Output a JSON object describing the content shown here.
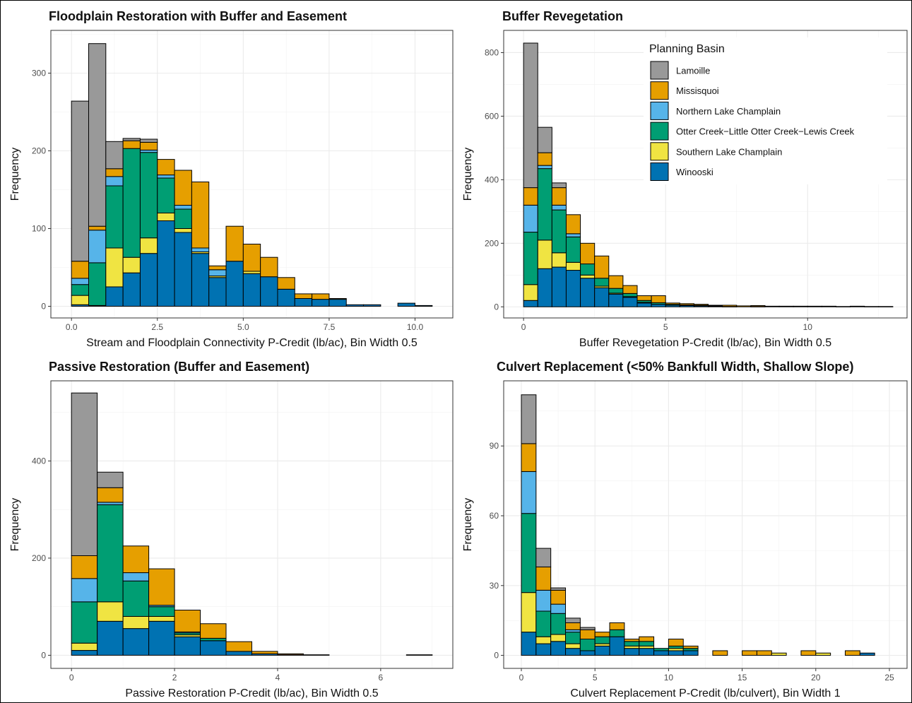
{
  "legend": {
    "title": "Planning Basin",
    "placement": "top-right of Buffer Revegetation panel",
    "items": [
      {
        "name": "Lamoille",
        "color": "#999999"
      },
      {
        "name": "Missisquoi",
        "color": "#E69F00"
      },
      {
        "name": "Northern Lake Champlain",
        "color": "#56B4E9"
      },
      {
        "name": "Otter Creek−Little Otter Creek−Lewis Creek",
        "color": "#009E73"
      },
      {
        "name": "Southern Lake Champlain",
        "color": "#F0E442"
      },
      {
        "name": "Winooski",
        "color": "#0072B2"
      }
    ]
  },
  "chart_data": [
    {
      "type": "bar",
      "stacked": true,
      "title": "Floodplain Restoration with Buffer and Easement",
      "xlabel": "Stream and Floodplain Connectivity P-Credit (lb/ac), Bin Width 0.5",
      "ylabel": "Frequency",
      "bin_width": 0.5,
      "x_start": 0,
      "xlim": [
        -0.6,
        11.1
      ],
      "ylim": [
        -15,
        355
      ],
      "x_ticks": [
        0,
        2.5,
        5,
        7.5,
        10
      ],
      "x_tick_labels": [
        "0.0",
        "2.5",
        "5.0",
        "7.5",
        "10.0"
      ],
      "y_ticks": [
        0,
        100,
        200,
        300
      ],
      "grid": true,
      "series": [
        {
          "name": "Winooski",
          "values": [
            2,
            1,
            25,
            43,
            68,
            110,
            95,
            68,
            37,
            58,
            42,
            38,
            22,
            10,
            9,
            9,
            2,
            2,
            0,
            4,
            1
          ]
        },
        {
          "name": "Southern Lake Champlain",
          "values": [
            12,
            0,
            50,
            20,
            20,
            10,
            5,
            2,
            2,
            0,
            3,
            0,
            0,
            0,
            0,
            0,
            0,
            0,
            0,
            0,
            0
          ]
        },
        {
          "name": "Otter Creek−Little Otter Creek−Lewis Creek",
          "values": [
            14,
            55,
            80,
            140,
            110,
            45,
            25,
            0,
            0,
            0,
            0,
            0,
            0,
            0,
            0,
            0,
            0,
            0,
            0,
            0,
            0
          ]
        },
        {
          "name": "Northern Lake Champlain",
          "values": [
            8,
            42,
            12,
            0,
            3,
            4,
            5,
            5,
            8,
            0,
            0,
            0,
            0,
            0,
            0,
            0,
            0,
            0,
            0,
            0,
            0
          ]
        },
        {
          "name": "Missisquoi",
          "values": [
            22,
            5,
            10,
            10,
            10,
            20,
            45,
            85,
            5,
            45,
            35,
            25,
            15,
            6,
            7,
            1,
            0,
            0,
            0,
            0,
            0
          ]
        },
        {
          "name": "Lamoille",
          "values": [
            206,
            235,
            35,
            3,
            4,
            0,
            0,
            0,
            0,
            0,
            0,
            0,
            0,
            0,
            0,
            0,
            0,
            0,
            0,
            0,
            0
          ]
        }
      ]
    },
    {
      "type": "bar",
      "stacked": true,
      "title": "Buffer Revegetation",
      "xlabel": "Buffer Revegetation P-Credit (lb/ac), Bin Width 0.5",
      "ylabel": "Frequency",
      "bin_width": 0.5,
      "x_start": 0,
      "xlim": [
        -0.7,
        13.5
      ],
      "ylim": [
        -35,
        870
      ],
      "x_ticks": [
        0,
        5,
        10
      ],
      "x_tick_labels": [
        "0",
        "5",
        "10"
      ],
      "y_ticks": [
        0,
        200,
        400,
        600,
        800
      ],
      "grid": true,
      "series": [
        {
          "name": "Winooski",
          "values": [
            20,
            120,
            125,
            115,
            90,
            60,
            40,
            30,
            12,
            8,
            5,
            4,
            3,
            2,
            1,
            0,
            1,
            0,
            0,
            0,
            0,
            0,
            0,
            0,
            0,
            0
          ]
        },
        {
          "name": "Southern Lake Champlain",
          "values": [
            50,
            90,
            45,
            25,
            10,
            5,
            3,
            2,
            2,
            0,
            0,
            0,
            0,
            0,
            0,
            0,
            0,
            0,
            0,
            0,
            0,
            0,
            0,
            0,
            0,
            0
          ]
        },
        {
          "name": "Otter Creek−Little Otter Creek−Lewis Creek",
          "values": [
            165,
            225,
            135,
            80,
            35,
            25,
            15,
            10,
            6,
            5,
            3,
            2,
            2,
            1,
            0,
            0,
            0,
            0,
            0,
            0,
            0,
            0,
            0,
            0,
            0,
            0
          ]
        },
        {
          "name": "Northern Lake Champlain",
          "values": [
            85,
            10,
            15,
            10,
            0,
            0,
            0,
            0,
            0,
            0,
            0,
            0,
            0,
            0,
            0,
            0,
            0,
            0,
            0,
            0,
            0,
            0,
            0,
            0,
            0,
            0
          ]
        },
        {
          "name": "Missisquoi",
          "values": [
            55,
            40,
            55,
            60,
            65,
            70,
            40,
            25,
            15,
            22,
            4,
            4,
            3,
            2,
            4,
            3,
            3,
            2,
            2,
            2,
            2,
            2,
            1,
            2,
            1,
            1
          ]
        },
        {
          "name": "Lamoille",
          "values": [
            455,
            80,
            15,
            0,
            0,
            0,
            0,
            0,
            0,
            0,
            0,
            0,
            0,
            0,
            0,
            0,
            0,
            0,
            0,
            0,
            0,
            0,
            0,
            0,
            0,
            0
          ]
        }
      ]
    },
    {
      "type": "bar",
      "stacked": true,
      "title": "Passive Restoration (Buffer and Easement)",
      "xlabel": "Passive Restoration P-Credit (lb/ac), Bin Width 0.5",
      "ylabel": "Frequency",
      "bin_width": 0.5,
      "x_start": 0,
      "xlim": [
        -0.4,
        7.4
      ],
      "ylim": [
        -27,
        565
      ],
      "x_ticks": [
        0,
        2,
        4,
        6
      ],
      "x_tick_labels": [
        "0",
        "2",
        "4",
        "6"
      ],
      "y_ticks": [
        0,
        200,
        400
      ],
      "grid": true,
      "series": [
        {
          "name": "Winooski",
          "values": [
            10,
            70,
            55,
            70,
            38,
            30,
            8,
            3,
            1,
            1,
            0,
            0,
            0,
            1
          ]
        },
        {
          "name": "Southern Lake Champlain",
          "values": [
            15,
            40,
            25,
            10,
            4,
            0,
            0,
            0,
            0,
            0,
            0,
            0,
            0,
            0
          ]
        },
        {
          "name": "Otter Creek−Little Otter Creek−Lewis Creek",
          "values": [
            85,
            200,
            73,
            20,
            4,
            5,
            0,
            0,
            0,
            0,
            0,
            0,
            0,
            0
          ]
        },
        {
          "name": "Northern Lake Champlain",
          "values": [
            48,
            5,
            17,
            3,
            2,
            0,
            0,
            0,
            0,
            0,
            0,
            0,
            0,
            0
          ]
        },
        {
          "name": "Missisquoi",
          "values": [
            47,
            30,
            55,
            75,
            45,
            30,
            20,
            5,
            2,
            0,
            0,
            0,
            0,
            0
          ]
        },
        {
          "name": "Lamoille",
          "values": [
            335,
            32,
            0,
            0,
            0,
            0,
            0,
            0,
            0,
            0,
            0,
            0,
            0,
            0
          ]
        }
      ]
    },
    {
      "type": "bar",
      "stacked": true,
      "title": "Culvert Replacement (<50% Bankfull Width, Shallow Slope)",
      "xlabel": "Culvert Replacement P-Credit (lb/culvert), Bin Width 1",
      "ylabel": "Frequency",
      "bin_width": 1,
      "x_start": 0,
      "xlim": [
        -1.2,
        26.2
      ],
      "ylim": [
        -5.6,
        118
      ],
      "x_ticks": [
        0,
        5,
        10,
        15,
        20,
        25
      ],
      "x_tick_labels": [
        "0",
        "5",
        "10",
        "15",
        "20",
        "25"
      ],
      "y_ticks": [
        0,
        30,
        60,
        90
      ],
      "grid": true,
      "series": [
        {
          "name": "Winooski",
          "values": [
            10,
            5,
            6,
            3,
            2,
            4,
            8,
            3,
            3,
            2,
            2,
            2,
            0,
            0,
            0,
            0,
            0,
            0,
            0,
            0,
            0,
            0,
            0,
            1
          ]
        },
        {
          "name": "Southern Lake Champlain",
          "values": [
            17,
            3,
            3,
            2,
            0,
            1,
            0,
            1,
            1,
            0,
            1,
            0,
            0,
            0,
            0,
            0,
            0,
            1,
            0,
            0,
            1,
            0,
            0,
            0
          ]
        },
        {
          "name": "Otter Creek−Little Otter Creek−Lewis Creek",
          "values": [
            34,
            11,
            9,
            5,
            5,
            3,
            3,
            2,
            2,
            1,
            1,
            1,
            0,
            0,
            0,
            0,
            0,
            0,
            0,
            0,
            0,
            0,
            0,
            0
          ]
        },
        {
          "name": "Northern Lake Champlain",
          "values": [
            18,
            9,
            4,
            1,
            0,
            0,
            0,
            0,
            0,
            0,
            0,
            0,
            0,
            0,
            0,
            0,
            0,
            0,
            0,
            0,
            0,
            0,
            0,
            0
          ]
        },
        {
          "name": "Missisquoi",
          "values": [
            12,
            10,
            6,
            3,
            4,
            2,
            3,
            1,
            2,
            0,
            3,
            1,
            0,
            2,
            0,
            2,
            2,
            0,
            0,
            2,
            0,
            0,
            2,
            0
          ]
        },
        {
          "name": "Lamoille",
          "values": [
            21,
            8,
            1,
            2,
            1,
            0,
            0,
            0,
            0,
            0,
            0,
            0,
            0,
            0,
            0,
            0,
            0,
            0,
            0,
            0,
            0,
            0,
            0,
            0
          ]
        }
      ]
    }
  ]
}
